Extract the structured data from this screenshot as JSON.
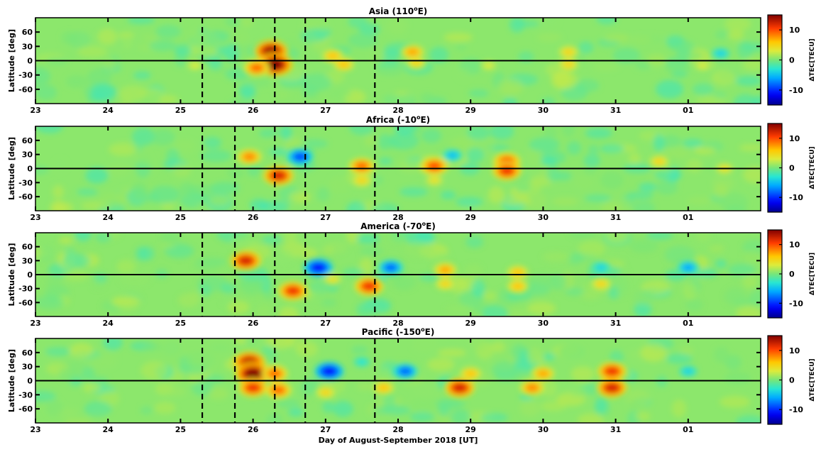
{
  "chart_data": [
    {
      "type": "heatmap",
      "title": "Asia (110",
      "title_sup": "o",
      "title_suffix": "E)",
      "ylabel": "Latitude [deg]",
      "xlabel": "",
      "xticks": [
        "23",
        "24",
        "25",
        "26",
        "27",
        "28",
        "29",
        "30",
        "31",
        "01"
      ],
      "yticks": [
        "60",
        "30",
        "0",
        "-30",
        "-60"
      ],
      "ylim": [
        -90,
        90
      ],
      "xlim": [
        23,
        33
      ],
      "colorbar": {
        "label": "ΔTEC[TECU]",
        "ticks": [
          "10",
          "0",
          "-10"
        ],
        "range": [
          -15,
          15
        ]
      },
      "blobs": [
        {
          "t": 26.25,
          "lat": 20,
          "v": 14
        },
        {
          "t": 26.3,
          "lat": -8,
          "v": 15
        },
        {
          "t": 26.05,
          "lat": -15,
          "v": 9
        },
        {
          "t": 27.1,
          "lat": 10,
          "v": 6
        },
        {
          "t": 27.25,
          "lat": -8,
          "v": 6
        },
        {
          "t": 28.2,
          "lat": 18,
          "v": 7
        },
        {
          "t": 28.25,
          "lat": -5,
          "v": 5
        },
        {
          "t": 25.2,
          "lat": -10,
          "v": 3
        },
        {
          "t": 29.25,
          "lat": -10,
          "v": 3
        },
        {
          "t": 30.35,
          "lat": 18,
          "v": 5
        },
        {
          "t": 30.35,
          "lat": -8,
          "v": 5
        },
        {
          "t": 32.45,
          "lat": 15,
          "v": -4
        },
        {
          "t": 32.2,
          "lat": -10,
          "v": 3
        }
      ]
    },
    {
      "type": "heatmap",
      "title": "Africa (-10",
      "title_sup": "o",
      "title_suffix": "E)",
      "ylabel": "Latitude [deg]",
      "xlabel": "",
      "xticks": [
        "23",
        "24",
        "25",
        "26",
        "27",
        "28",
        "29",
        "30",
        "31",
        "01"
      ],
      "yticks": [
        "60",
        "30",
        "0",
        "-30",
        "-60"
      ],
      "ylim": [
        -90,
        90
      ],
      "xlim": [
        23,
        33
      ],
      "colorbar": {
        "label": "ΔTEC[TECU]",
        "ticks": [
          "10",
          "0",
          "-10"
        ],
        "range": [
          -15,
          15
        ]
      },
      "blobs": [
        {
          "t": 25.95,
          "lat": 25,
          "v": 8
        },
        {
          "t": 26.35,
          "lat": -15,
          "v": 12
        },
        {
          "t": 26.65,
          "lat": 25,
          "v": -9
        },
        {
          "t": 27.5,
          "lat": 5,
          "v": 9
        },
        {
          "t": 27.5,
          "lat": -25,
          "v": 5
        },
        {
          "t": 28.5,
          "lat": 5,
          "v": 10
        },
        {
          "t": 28.5,
          "lat": -25,
          "v": 4
        },
        {
          "t": 28.75,
          "lat": 28,
          "v": -5
        },
        {
          "t": 29.5,
          "lat": 15,
          "v": 10
        },
        {
          "t": 29.5,
          "lat": -5,
          "v": 11
        },
        {
          "t": 31.6,
          "lat": 15,
          "v": 5
        },
        {
          "t": 32.5,
          "lat": 0,
          "v": 4
        }
      ]
    },
    {
      "type": "heatmap",
      "title": "America (-70",
      "title_sup": "o",
      "title_suffix": "E)",
      "ylabel": "Latitude [deg]",
      "xlabel": "",
      "xticks": [
        "23",
        "24",
        "25",
        "26",
        "27",
        "28",
        "29",
        "30",
        "31",
        "01"
      ],
      "yticks": [
        "60",
        "30",
        "0",
        "-30",
        "-60"
      ],
      "ylim": [
        -90,
        90
      ],
      "xlim": [
        23,
        33
      ],
      "colorbar": {
        "label": "ΔTEC[TECU]",
        "ticks": [
          "10",
          "0",
          "-10"
        ],
        "range": [
          -15,
          15
        ]
      },
      "blobs": [
        {
          "t": 25.9,
          "lat": 30,
          "v": 12
        },
        {
          "t": 26.55,
          "lat": -35,
          "v": 11
        },
        {
          "t": 26.9,
          "lat": 15,
          "v": -11
        },
        {
          "t": 27.1,
          "lat": -10,
          "v": 4
        },
        {
          "t": 27.6,
          "lat": -25,
          "v": 11
        },
        {
          "t": 27.9,
          "lat": 15,
          "v": -8
        },
        {
          "t": 28.65,
          "lat": 10,
          "v": 7
        },
        {
          "t": 28.65,
          "lat": -20,
          "v": 5
        },
        {
          "t": 29.65,
          "lat": 5,
          "v": 6
        },
        {
          "t": 29.65,
          "lat": -25,
          "v": 6
        },
        {
          "t": 30.8,
          "lat": -20,
          "v": 5
        },
        {
          "t": 32.0,
          "lat": 15,
          "v": -6
        },
        {
          "t": 30.8,
          "lat": 15,
          "v": -4
        }
      ]
    },
    {
      "type": "heatmap",
      "title": "Pacific (-150",
      "title_sup": "o",
      "title_suffix": "E)",
      "ylabel": "Latitude [deg]",
      "xlabel": "Day of August-September 2018 [UT]",
      "xticks": [
        "23",
        "24",
        "25",
        "26",
        "27",
        "28",
        "29",
        "30",
        "31",
        "01"
      ],
      "yticks": [
        "60",
        "30",
        "0",
        "-30",
        "-60"
      ],
      "ylim": [
        -90,
        90
      ],
      "xlim": [
        23,
        33
      ],
      "colorbar": {
        "label": "ΔTEC[TECU]",
        "ticks": [
          "10",
          "0",
          "-10"
        ],
        "range": [
          -15,
          15
        ]
      },
      "blobs": [
        {
          "t": 25.95,
          "lat": 40,
          "v": 13
        },
        {
          "t": 26.0,
          "lat": 15,
          "v": 15
        },
        {
          "t": 26.3,
          "lat": 15,
          "v": 9
        },
        {
          "t": 26.0,
          "lat": -15,
          "v": 11
        },
        {
          "t": 26.35,
          "lat": -20,
          "v": 9
        },
        {
          "t": 27.05,
          "lat": 20,
          "v": -11
        },
        {
          "t": 27.5,
          "lat": 40,
          "v": -3
        },
        {
          "t": 27.0,
          "lat": -25,
          "v": 5
        },
        {
          "t": 28.1,
          "lat": 20,
          "v": -8
        },
        {
          "t": 27.8,
          "lat": -15,
          "v": 6
        },
        {
          "t": 28.85,
          "lat": -15,
          "v": 12
        },
        {
          "t": 29.0,
          "lat": 15,
          "v": 6
        },
        {
          "t": 29.85,
          "lat": -15,
          "v": 8
        },
        {
          "t": 30.0,
          "lat": 15,
          "v": 7
        },
        {
          "t": 30.95,
          "lat": 20,
          "v": 11
        },
        {
          "t": 30.95,
          "lat": -15,
          "v": 12
        },
        {
          "t": 32.0,
          "lat": 20,
          "v": -4
        }
      ]
    }
  ],
  "storm_markers": [
    "25.3",
    "25.75",
    "26.3",
    "26.72",
    "27.68"
  ]
}
